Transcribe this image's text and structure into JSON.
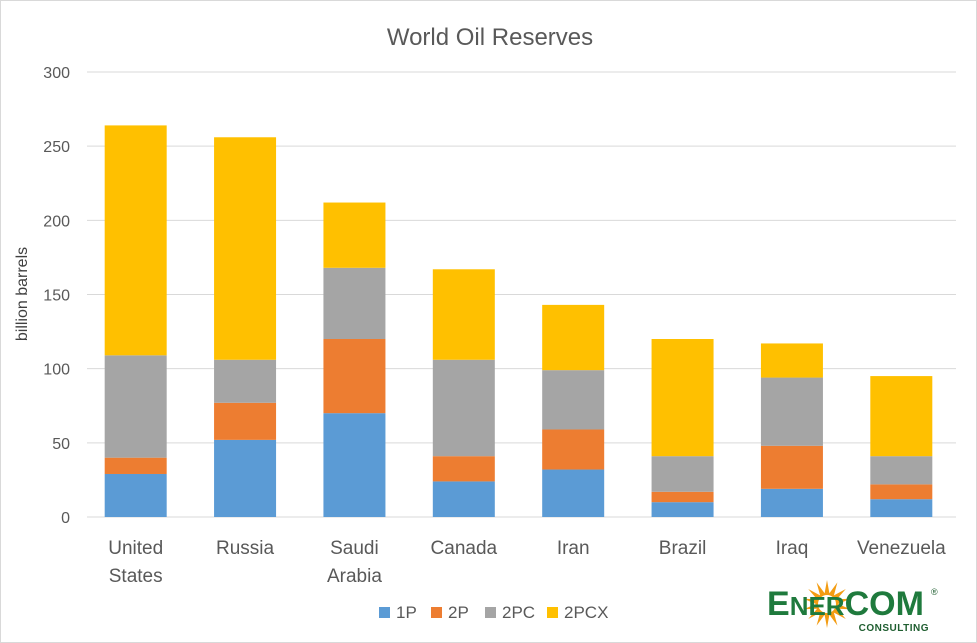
{
  "chart_data": {
    "type": "bar",
    "stacked": true,
    "title": "World Oil Reserves",
    "ylabel": "billion barrels",
    "xlabel": "",
    "ylim": [
      0,
      300
    ],
    "yticks": [
      0,
      50,
      100,
      150,
      200,
      250,
      300
    ],
    "grid": true,
    "legend_position": "bottom",
    "categories": [
      [
        "United",
        "States"
      ],
      [
        "Russia"
      ],
      [
        "Saudi",
        "Arabia"
      ],
      [
        "Canada"
      ],
      [
        "Iran"
      ],
      [
        "Brazil"
      ],
      [
        "Iraq"
      ],
      [
        "Venezuela"
      ]
    ],
    "series": [
      {
        "name": "1P",
        "color": "#5b9bd5",
        "values": [
          29,
          52,
          70,
          24,
          32,
          10,
          19,
          12
        ]
      },
      {
        "name": "2P",
        "color": "#ed7d31",
        "values": [
          11,
          25,
          50,
          17,
          27,
          7,
          29,
          10
        ]
      },
      {
        "name": "2PC",
        "color": "#a5a5a5",
        "values": [
          69,
          29,
          48,
          65,
          40,
          24,
          46,
          19
        ]
      },
      {
        "name": "2PCX",
        "color": "#ffc000",
        "values": [
          155,
          150,
          44,
          61,
          44,
          79,
          23,
          54
        ]
      }
    ]
  },
  "logo": {
    "main_pre": "E",
    "main_small": "NER",
    "main_post": "COM",
    "registered": "®",
    "sub": "CONSULTING",
    "colors": {
      "text": "#1f7a3d",
      "star": "#f39c12"
    }
  }
}
